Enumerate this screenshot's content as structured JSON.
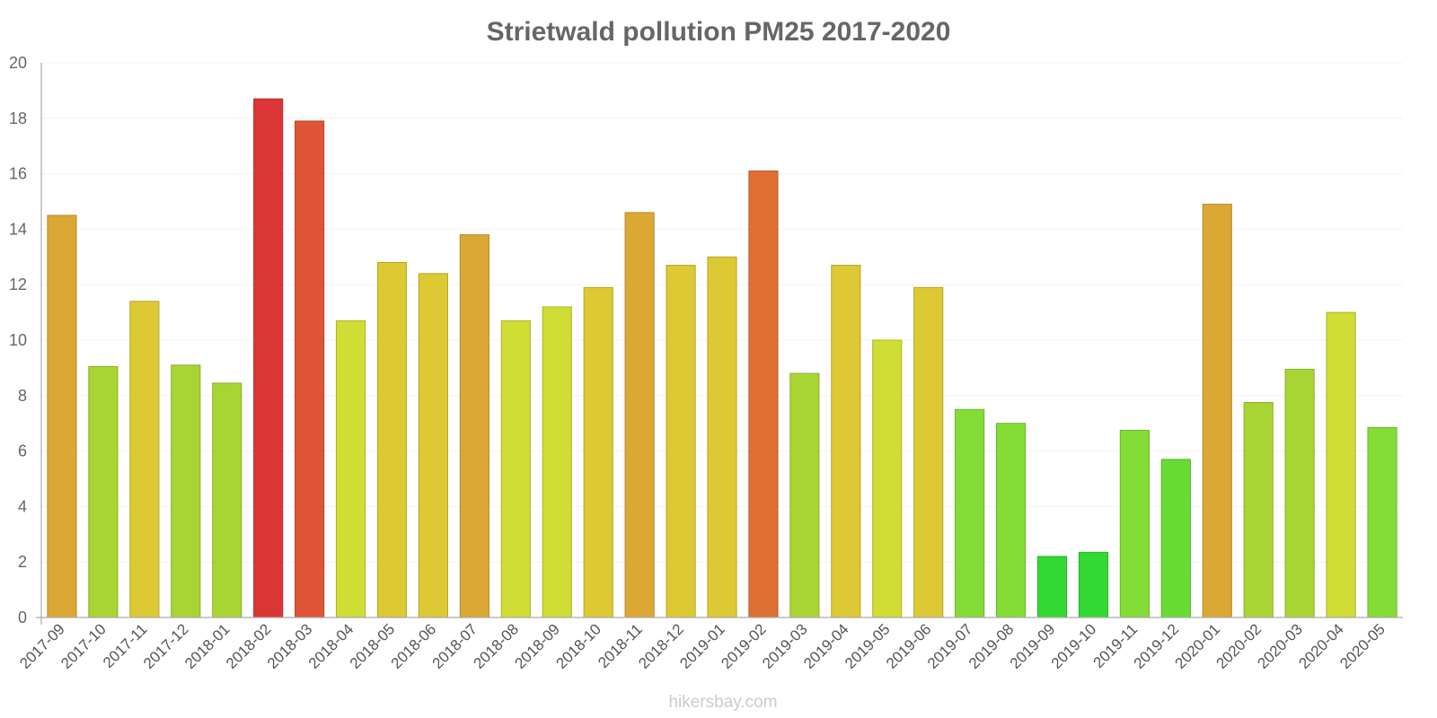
{
  "chart_data": {
    "type": "bar",
    "title": "Strietwald pollution PM25 2017-2020",
    "xlabel": "",
    "ylabel": "",
    "ylim": [
      0,
      20
    ],
    "yticks": [
      0,
      2,
      4,
      6,
      8,
      10,
      12,
      14,
      16,
      18,
      20
    ],
    "grid": true,
    "categories": [
      "2017-09",
      "2017-10",
      "2017-11",
      "2017-12",
      "2018-01",
      "2018-02",
      "2018-03",
      "2018-04",
      "2018-05",
      "2018-06",
      "2018-07",
      "2018-08",
      "2018-09",
      "2018-10",
      "2018-11",
      "2018-12",
      "2019-01",
      "2019-02",
      "2019-03",
      "2019-04",
      "2019-05",
      "2019-06",
      "2019-07",
      "2019-08",
      "2019-09",
      "2019-10",
      "2019-11",
      "2019-12",
      "2020-01",
      "2020-02",
      "2020-03",
      "2020-04",
      "2020-05"
    ],
    "values": [
      14.5,
      9.05,
      11.4,
      9.1,
      8.45,
      18.7,
      17.9,
      10.7,
      12.8,
      12.4,
      13.8,
      10.7,
      11.2,
      11.9,
      14.6,
      12.7,
      13.0,
      16.1,
      8.8,
      12.7,
      10.0,
      11.9,
      7.5,
      7.0,
      2.2,
      2.35,
      6.75,
      5.7,
      14.9,
      7.75,
      8.95,
      11.0,
      6.85
    ],
    "colors": [
      "#dba834",
      "#a8d533",
      "#dcc934",
      "#a8d533",
      "#a8d533",
      "#dc3535",
      "#de5535",
      "#cfdd34",
      "#dcc934",
      "#dcc934",
      "#dba834",
      "#cfdd34",
      "#cfdd34",
      "#dcc934",
      "#dba834",
      "#dcc934",
      "#dcc934",
      "#df6f33",
      "#a8d533",
      "#dcc934",
      "#cfdd34",
      "#dcc934",
      "#84dc37",
      "#84dc37",
      "#33d933",
      "#33d933",
      "#84dc37",
      "#68dc34",
      "#dba834",
      "#a8d533",
      "#a8d533",
      "#cfdd34",
      "#84dc37"
    ]
  },
  "credit": "hikersbay.com"
}
